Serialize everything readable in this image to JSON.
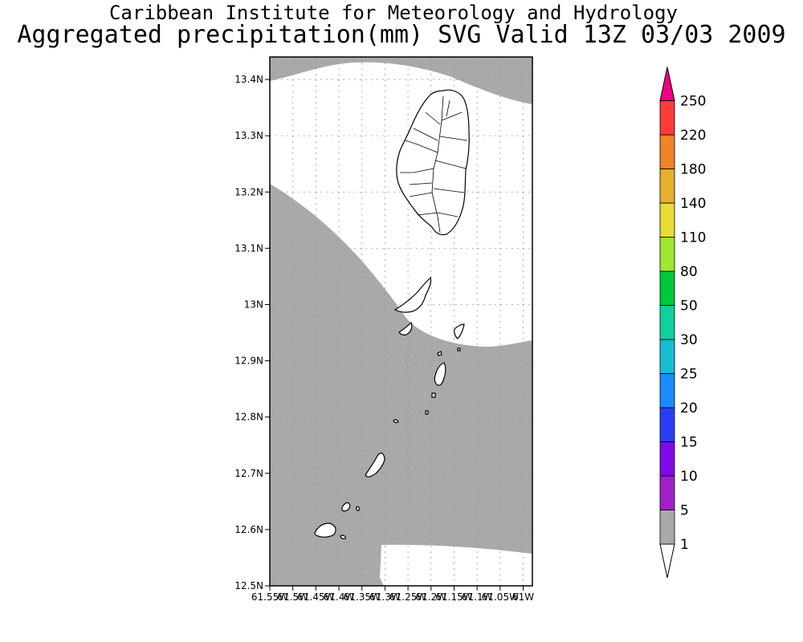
{
  "header": {
    "line1": "Caribbean Institute for Meteorology and Hydrology",
    "line2": "Aggregated precipitation(mm) SVG Valid 13Z 03/03 2009"
  },
  "map": {
    "lat_labels": [
      "13.4N",
      "13.3N",
      "13.2N",
      "13.1N",
      "13N",
      "12.9N",
      "12.8N",
      "12.7N",
      "12.6N",
      "12.5N"
    ],
    "lon_labels": [
      "61.55W",
      "61.5W",
      "61.45W",
      "61.4W",
      "61.35W",
      "61.3W",
      "61.25W",
      "61.2W",
      "61.15W",
      "61.1W",
      "61.05W",
      "61W"
    ],
    "land_outline_color": "#000000",
    "precip_fill_color": "#a9a9a9"
  },
  "colorbar": {
    "levels": [
      "1",
      "5",
      "10",
      "15",
      "20",
      "25",
      "30",
      "50",
      "80",
      "110",
      "140",
      "180",
      "220",
      "250"
    ],
    "colors": [
      "#a9a9a9",
      "#a020c8",
      "#7d0ae6",
      "#2b3df4",
      "#1a8cff",
      "#16bdd2",
      "#10d0a0",
      "#00c83c",
      "#a0e632",
      "#e6dc32",
      "#e6af2d",
      "#f08228",
      "#fa3c3c",
      "#f00082"
    ]
  }
}
